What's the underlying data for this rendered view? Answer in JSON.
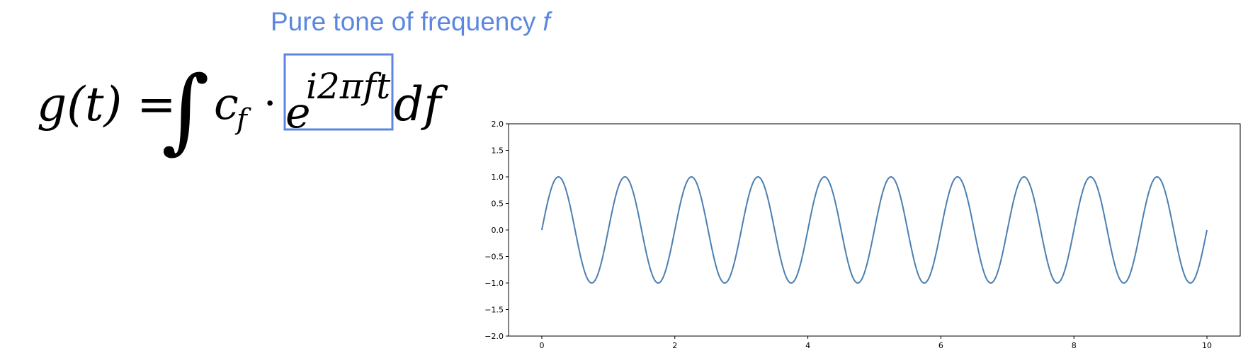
{
  "caption": {
    "text": "Pure tone of frequency",
    "variable": "f"
  },
  "formula": {
    "lhs": "g(t) =",
    "integral": "∫",
    "coefficient": "c",
    "coefficient_subscript": "f",
    "dot": "·",
    "exp_base": "e",
    "exp_power": "i2πft",
    "differential": "df",
    "highlight_color": "#5b87e0"
  },
  "chart_data": {
    "type": "line",
    "title": "",
    "xlabel": "",
    "ylabel": "",
    "xlim": [
      -0.5,
      10.5
    ],
    "ylim": [
      -2.0,
      2.0
    ],
    "x_ticks": [
      0,
      2,
      4,
      6,
      8,
      10
    ],
    "x_tick_labels": [
      "0",
      "2",
      "4",
      "6",
      "8",
      "10"
    ],
    "y_ticks": [
      2.0,
      1.5,
      1.0,
      0.5,
      0.0,
      -0.5,
      -1.0,
      -1.5,
      -2.0
    ],
    "y_tick_labels": [
      "2.0",
      "1.5",
      "1.0",
      "0.5",
      "0.0",
      "−0.5",
      "−1.0",
      "−1.5",
      "−2.0"
    ],
    "grid": false,
    "series": [
      {
        "function": "sin(2πft)",
        "frequency": 1,
        "amplitude": 1,
        "x_start": 0,
        "x_end": 10,
        "color": "#4c7fb0"
      }
    ]
  }
}
